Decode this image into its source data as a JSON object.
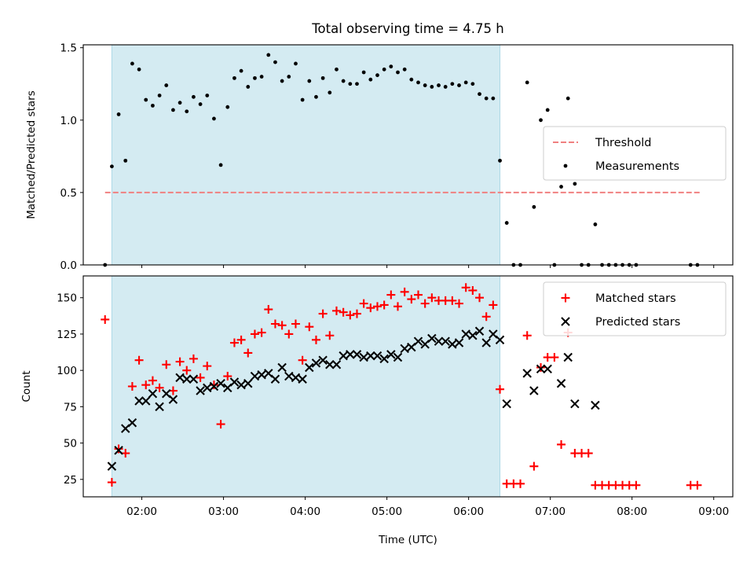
{
  "chart_data": [
    {
      "type": "scatter",
      "title": "Total observing time = 4.75 h",
      "xlabel": "",
      "ylabel": "Matched/Predicted stars",
      "xlim": [
        "01:17",
        "09:14"
      ],
      "ylim": [
        0,
        1.52
      ],
      "yticks": [
        0,
        0.5,
        1.0,
        1.5
      ],
      "ytick_labels": [
        "0.0",
        "0.5",
        "1.0",
        "1.5"
      ],
      "x_units": "HH:MM UTC",
      "grid": false,
      "legend_position": "center-right",
      "observing_window": {
        "start": "01:38",
        "end": "06:23",
        "color": "#d4ebf2"
      },
      "series": [
        {
          "name": "Threshold",
          "style": "dashed-line",
          "color": "#f08080",
          "x": [
            "01:33",
            "08:51"
          ],
          "y": [
            0.5,
            0.5
          ]
        },
        {
          "name": "Measurements",
          "style": "dot",
          "color": "#000000",
          "points": [
            [
              "01:33",
              0.0
            ],
            [
              "01:38",
              0.68
            ],
            [
              "01:43",
              1.04
            ],
            [
              "01:48",
              0.72
            ],
            [
              "01:53",
              1.39
            ],
            [
              "01:58",
              1.35
            ],
            [
              "02:03",
              1.14
            ],
            [
              "02:08",
              1.1
            ],
            [
              "02:13",
              1.17
            ],
            [
              "02:18",
              1.24
            ],
            [
              "02:23",
              1.07
            ],
            [
              "02:28",
              1.12
            ],
            [
              "02:33",
              1.06
            ],
            [
              "02:38",
              1.16
            ],
            [
              "02:43",
              1.11
            ],
            [
              "02:48",
              1.17
            ],
            [
              "02:53",
              1.01
            ],
            [
              "02:58",
              0.69
            ],
            [
              "03:03",
              1.09
            ],
            [
              "03:08",
              1.29
            ],
            [
              "03:13",
              1.34
            ],
            [
              "03:18",
              1.23
            ],
            [
              "03:23",
              1.29
            ],
            [
              "03:28",
              1.3
            ],
            [
              "03:33",
              1.45
            ],
            [
              "03:38",
              1.4
            ],
            [
              "03:43",
              1.27
            ],
            [
              "03:48",
              1.3
            ],
            [
              "03:53",
              1.39
            ],
            [
              "03:58",
              1.14
            ],
            [
              "04:03",
              1.27
            ],
            [
              "04:08",
              1.16
            ],
            [
              "04:13",
              1.29
            ],
            [
              "04:18",
              1.19
            ],
            [
              "04:23",
              1.35
            ],
            [
              "04:28",
              1.27
            ],
            [
              "04:33",
              1.25
            ],
            [
              "04:38",
              1.25
            ],
            [
              "04:43",
              1.33
            ],
            [
              "04:48",
              1.28
            ],
            [
              "04:53",
              1.31
            ],
            [
              "04:58",
              1.35
            ],
            [
              "05:03",
              1.37
            ],
            [
              "05:08",
              1.33
            ],
            [
              "05:13",
              1.35
            ],
            [
              "05:18",
              1.28
            ],
            [
              "05:23",
              1.26
            ],
            [
              "05:28",
              1.24
            ],
            [
              "05:33",
              1.23
            ],
            [
              "05:38",
              1.24
            ],
            [
              "05:43",
              1.23
            ],
            [
              "05:48",
              1.25
            ],
            [
              "05:53",
              1.24
            ],
            [
              "05:58",
              1.26
            ],
            [
              "06:03",
              1.25
            ],
            [
              "06:08",
              1.18
            ],
            [
              "06:13",
              1.15
            ],
            [
              "06:18",
              1.15
            ],
            [
              "06:23",
              0.72
            ],
            [
              "06:28",
              0.29
            ],
            [
              "06:33",
              0.0
            ],
            [
              "06:38",
              0.0
            ],
            [
              "06:43",
              1.26
            ],
            [
              "06:48",
              0.4
            ],
            [
              "06:53",
              1.0
            ],
            [
              "06:58",
              1.07
            ],
            [
              "07:03",
              0.0
            ],
            [
              "07:08",
              0.54
            ],
            [
              "07:13",
              1.15
            ],
            [
              "07:18",
              0.56
            ],
            [
              "07:23",
              0.0
            ],
            [
              "07:28",
              0.0
            ],
            [
              "07:33",
              0.28
            ],
            [
              "07:38",
              0.0
            ],
            [
              "07:43",
              0.0
            ],
            [
              "07:48",
              0.0
            ],
            [
              "07:53",
              0.0
            ],
            [
              "07:58",
              0.0
            ],
            [
              "08:03",
              0.0
            ],
            [
              "08:43",
              0.0
            ],
            [
              "08:48",
              0.0
            ]
          ]
        }
      ]
    },
    {
      "type": "scatter",
      "title": "",
      "xlabel": "Time (UTC)",
      "ylabel": "Count",
      "xlim": [
        "01:17",
        "09:14"
      ],
      "ylim": [
        13,
        165
      ],
      "yticks": [
        25,
        50,
        75,
        100,
        125,
        150
      ],
      "ytick_labels": [
        "25",
        "50",
        "75",
        "100",
        "125",
        "150"
      ],
      "xticks": [
        "02:00",
        "03:00",
        "04:00",
        "05:00",
        "06:00",
        "07:00",
        "08:00",
        "09:00"
      ],
      "xtick_labels": [
        "02:00",
        "03:00",
        "04:00",
        "05:00",
        "06:00",
        "07:00",
        "08:00",
        "09:00"
      ],
      "x_units": "HH:MM UTC",
      "grid": false,
      "legend_position": "top-right",
      "observing_window": {
        "start": "01:38",
        "end": "06:23",
        "color": "#d4ebf2"
      },
      "series": [
        {
          "name": "Matched stars",
          "style": "plus",
          "color": "#ff0000",
          "points": [
            [
              "01:33",
              135
            ],
            [
              "01:38",
              23
            ],
            [
              "01:43",
              46
            ],
            [
              "01:48",
              43
            ],
            [
              "01:53",
              89
            ],
            [
              "01:58",
              107
            ],
            [
              "02:03",
              90
            ],
            [
              "02:08",
              93
            ],
            [
              "02:13",
              88
            ],
            [
              "02:18",
              104
            ],
            [
              "02:23",
              86
            ],
            [
              "02:28",
              106
            ],
            [
              "02:33",
              100
            ],
            [
              "02:38",
              108
            ],
            [
              "02:43",
              95
            ],
            [
              "02:48",
              103
            ],
            [
              "02:53",
              90
            ],
            [
              "02:58",
              63
            ],
            [
              "03:03",
              96
            ],
            [
              "03:08",
              119
            ],
            [
              "03:13",
              121
            ],
            [
              "03:18",
              112
            ],
            [
              "03:23",
              125
            ],
            [
              "03:28",
              126
            ],
            [
              "03:33",
              142
            ],
            [
              "03:38",
              132
            ],
            [
              "03:43",
              131
            ],
            [
              "03:48",
              125
            ],
            [
              "03:53",
              132
            ],
            [
              "03:58",
              107
            ],
            [
              "04:03",
              130
            ],
            [
              "04:08",
              121
            ],
            [
              "04:13",
              139
            ],
            [
              "04:18",
              124
            ],
            [
              "04:23",
              141
            ],
            [
              "04:28",
              140
            ],
            [
              "04:33",
              138
            ],
            [
              "04:38",
              139
            ],
            [
              "04:43",
              146
            ],
            [
              "04:48",
              143
            ],
            [
              "04:53",
              144
            ],
            [
              "04:58",
              145
            ],
            [
              "05:03",
              152
            ],
            [
              "05:08",
              144
            ],
            [
              "05:13",
              154
            ],
            [
              "05:18",
              149
            ],
            [
              "05:23",
              152
            ],
            [
              "05:28",
              146
            ],
            [
              "05:33",
              150
            ],
            [
              "05:38",
              148
            ],
            [
              "05:43",
              148
            ],
            [
              "05:48",
              148
            ],
            [
              "05:53",
              146
            ],
            [
              "05:58",
              157
            ],
            [
              "06:03",
              155
            ],
            [
              "06:08",
              150
            ],
            [
              "06:13",
              137
            ],
            [
              "06:18",
              145
            ],
            [
              "06:23",
              87
            ],
            [
              "06:28",
              22
            ],
            [
              "06:33",
              22
            ],
            [
              "06:38",
              22
            ],
            [
              "06:43",
              124
            ],
            [
              "06:48",
              34
            ],
            [
              "06:53",
              102
            ],
            [
              "06:58",
              109
            ],
            [
              "07:03",
              109
            ],
            [
              "07:08",
              49
            ],
            [
              "07:13",
              126
            ],
            [
              "07:18",
              43
            ],
            [
              "07:23",
              43
            ],
            [
              "07:28",
              43
            ],
            [
              "07:33",
              21
            ],
            [
              "07:38",
              21
            ],
            [
              "07:43",
              21
            ],
            [
              "07:48",
              21
            ],
            [
              "07:53",
              21
            ],
            [
              "07:58",
              21
            ],
            [
              "08:03",
              21
            ],
            [
              "08:43",
              21
            ],
            [
              "08:48",
              21
            ]
          ]
        },
        {
          "name": "Predicted stars",
          "style": "x",
          "color": "#000000",
          "points": [
            [
              "01:38",
              34
            ],
            [
              "01:43",
              45
            ],
            [
              "01:48",
              60
            ],
            [
              "01:53",
              64
            ],
            [
              "01:58",
              79
            ],
            [
              "02:03",
              79
            ],
            [
              "02:08",
              84
            ],
            [
              "02:13",
              75
            ],
            [
              "02:18",
              84
            ],
            [
              "02:23",
              80
            ],
            [
              "02:28",
              95
            ],
            [
              "02:33",
              94
            ],
            [
              "02:38",
              94
            ],
            [
              "02:43",
              86
            ],
            [
              "02:48",
              88
            ],
            [
              "02:53",
              89
            ],
            [
              "02:58",
              91
            ],
            [
              "03:03",
              88
            ],
            [
              "03:08",
              92
            ],
            [
              "03:13",
              90
            ],
            [
              "03:18",
              91
            ],
            [
              "03:23",
              96
            ],
            [
              "03:28",
              97
            ],
            [
              "03:33",
              98
            ],
            [
              "03:38",
              94
            ],
            [
              "03:43",
              102
            ],
            [
              "03:48",
              96
            ],
            [
              "03:53",
              95
            ],
            [
              "03:58",
              94
            ],
            [
              "04:03",
              102
            ],
            [
              "04:08",
              105
            ],
            [
              "04:13",
              107
            ],
            [
              "04:18",
              104
            ],
            [
              "04:23",
              104
            ],
            [
              "04:28",
              110
            ],
            [
              "04:33",
              111
            ],
            [
              "04:38",
              111
            ],
            [
              "04:43",
              109
            ],
            [
              "04:48",
              110
            ],
            [
              "04:53",
              110
            ],
            [
              "04:58",
              108
            ],
            [
              "05:03",
              111
            ],
            [
              "05:08",
              109
            ],
            [
              "05:13",
              115
            ],
            [
              "05:18",
              116
            ],
            [
              "05:23",
              120
            ],
            [
              "05:28",
              118
            ],
            [
              "05:33",
              122
            ],
            [
              "05:38",
              120
            ],
            [
              "05:43",
              120
            ],
            [
              "05:48",
              118
            ],
            [
              "05:53",
              119
            ],
            [
              "05:58",
              125
            ],
            [
              "06:03",
              124
            ],
            [
              "06:08",
              127
            ],
            [
              "06:13",
              119
            ],
            [
              "06:18",
              125
            ],
            [
              "06:23",
              121
            ],
            [
              "06:28",
              77
            ],
            [
              "06:43",
              98
            ],
            [
              "06:48",
              86
            ],
            [
              "06:53",
              101
            ],
            [
              "06:58",
              101
            ],
            [
              "07:08",
              91
            ],
            [
              "07:13",
              109
            ],
            [
              "07:18",
              77
            ],
            [
              "07:33",
              76
            ]
          ]
        }
      ]
    }
  ]
}
